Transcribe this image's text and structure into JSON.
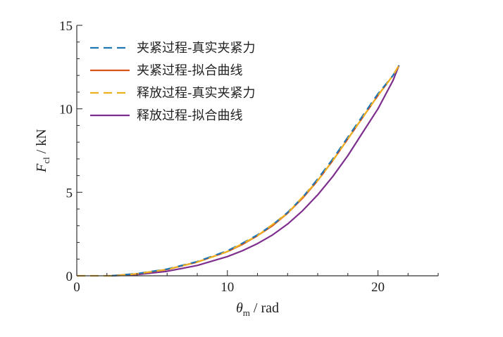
{
  "chart_data": {
    "type": "line",
    "xlabel": {
      "symbol": "θ",
      "subscript": "m",
      "unit": " / rad"
    },
    "ylabel": {
      "symbol": "F",
      "subscript": "cl",
      "unit": " / kN"
    },
    "xlim": [
      0,
      24
    ],
    "ylim": [
      0,
      15
    ],
    "xticks": [
      0,
      10,
      20
    ],
    "yticks": [
      0,
      5,
      10,
      15
    ],
    "grid": false,
    "legend_position": "top-left",
    "series": [
      {
        "name": "夹紧过程-真实夹紧力",
        "style": "dashed",
        "color": "#1f77b4",
        "x": [
          2.3,
          4,
          6,
          8,
          10,
          11,
          12,
          13,
          14,
          15,
          16,
          17,
          18,
          19,
          20,
          21,
          21.4
        ],
        "y": [
          0,
          0.13,
          0.4,
          0.85,
          1.5,
          1.95,
          2.45,
          3.05,
          3.8,
          4.7,
          5.8,
          7.0,
          8.3,
          9.6,
          10.9,
          12.0,
          12.6
        ]
      },
      {
        "name": "夹紧过程-拟合曲线",
        "style": "solid",
        "color": "#d9541a",
        "x": [
          2.3,
          4,
          6,
          8,
          10,
          11,
          12,
          13,
          14,
          15,
          16,
          17,
          18,
          19,
          20,
          21,
          21.4
        ],
        "y": [
          0,
          0.12,
          0.38,
          0.82,
          1.45,
          1.88,
          2.4,
          3.0,
          3.75,
          4.65,
          5.7,
          6.9,
          8.2,
          9.5,
          10.8,
          12.0,
          12.6
        ]
      },
      {
        "name": "释放过程-真实夹紧力",
        "style": "dashed",
        "color": "#edb120",
        "x": [
          0,
          1,
          2,
          2.5,
          4,
          6,
          8,
          10,
          12,
          14,
          16,
          17,
          18,
          19,
          20,
          21,
          21.4
        ],
        "y": [
          0,
          0,
          0,
          0,
          0.12,
          0.38,
          0.82,
          1.45,
          2.4,
          3.75,
          5.7,
          6.9,
          8.2,
          9.5,
          10.8,
          12.0,
          12.6
        ]
      },
      {
        "name": "释放过程-拟合曲线",
        "style": "solid",
        "color": "#7e2f8e",
        "x": [
          2.3,
          4,
          6,
          8,
          10,
          11,
          12,
          13,
          14,
          15,
          16,
          17,
          18,
          19,
          20,
          21,
          21.4
        ],
        "y": [
          0,
          0.07,
          0.27,
          0.62,
          1.15,
          1.5,
          1.93,
          2.45,
          3.1,
          3.9,
          4.85,
          5.95,
          7.2,
          8.6,
          10.0,
          11.7,
          12.6
        ]
      }
    ]
  }
}
